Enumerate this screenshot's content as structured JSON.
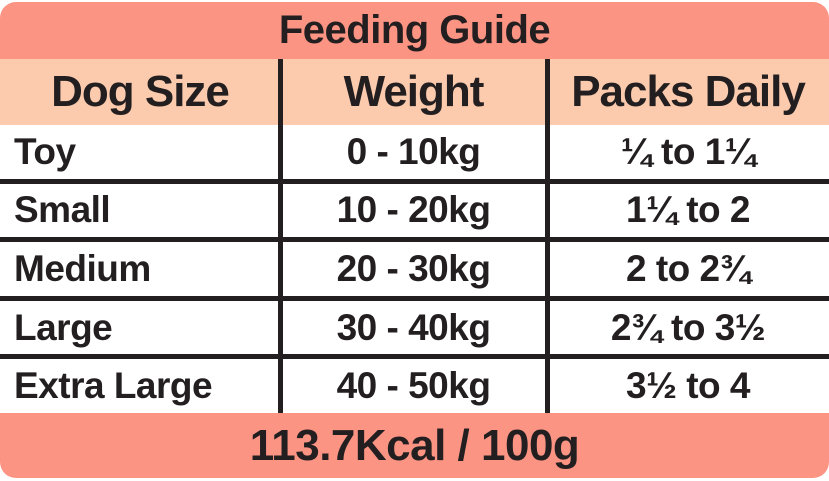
{
  "title": "Feeding Guide",
  "table": {
    "columns": [
      "Dog Size",
      "Weight",
      "Packs Daily"
    ],
    "rows": [
      {
        "dog_size": "Toy",
        "weight": "0 - 10kg",
        "packs_daily": "¼ to 1¼"
      },
      {
        "dog_size": "Small",
        "weight": "10 - 20kg",
        "packs_daily": "1¼ to 2"
      },
      {
        "dog_size": "Medium",
        "weight": "20 - 30kg",
        "packs_daily": "2 to 2¾"
      },
      {
        "dog_size": "Large",
        "weight": "30 - 40kg",
        "packs_daily": "2¾ to 3½"
      },
      {
        "dog_size": "Extra Large",
        "weight": "40 - 50kg",
        "packs_daily": "3½ to 4"
      }
    ]
  },
  "footer": {
    "calories": "113.7Kcal / 100g"
  },
  "colors": {
    "salmon_band": "#FC9484",
    "peach_header": "#FCCBAE",
    "text_and_lines": "#231F20",
    "row_background": "#FFFFFF"
  },
  "chart_data": {
    "type": "table",
    "title": "Feeding Guide",
    "columns": [
      "Dog Size",
      "Weight",
      "Packs Daily"
    ],
    "rows": [
      [
        "Toy",
        "0 - 10kg",
        "¼ to 1¼"
      ],
      [
        "Small",
        "10 - 20kg",
        "1¼ to 2"
      ],
      [
        "Medium",
        "20 - 30kg",
        "2 to 2¾"
      ],
      [
        "Large",
        "30 - 40kg",
        "2¾ to 3½"
      ],
      [
        "Extra Large",
        "40 - 50kg",
        "3½ to 4"
      ]
    ],
    "footnote": "113.7Kcal / 100g",
    "weight_ranges_kg": [
      [
        0,
        10
      ],
      [
        10,
        20
      ],
      [
        20,
        30
      ],
      [
        30,
        40
      ],
      [
        40,
        50
      ]
    ],
    "packs_daily_ranges": [
      [
        0.25,
        1.25
      ],
      [
        1.25,
        2
      ],
      [
        2,
        2.75
      ],
      [
        2.75,
        3.5
      ],
      [
        3.5,
        4
      ]
    ]
  }
}
